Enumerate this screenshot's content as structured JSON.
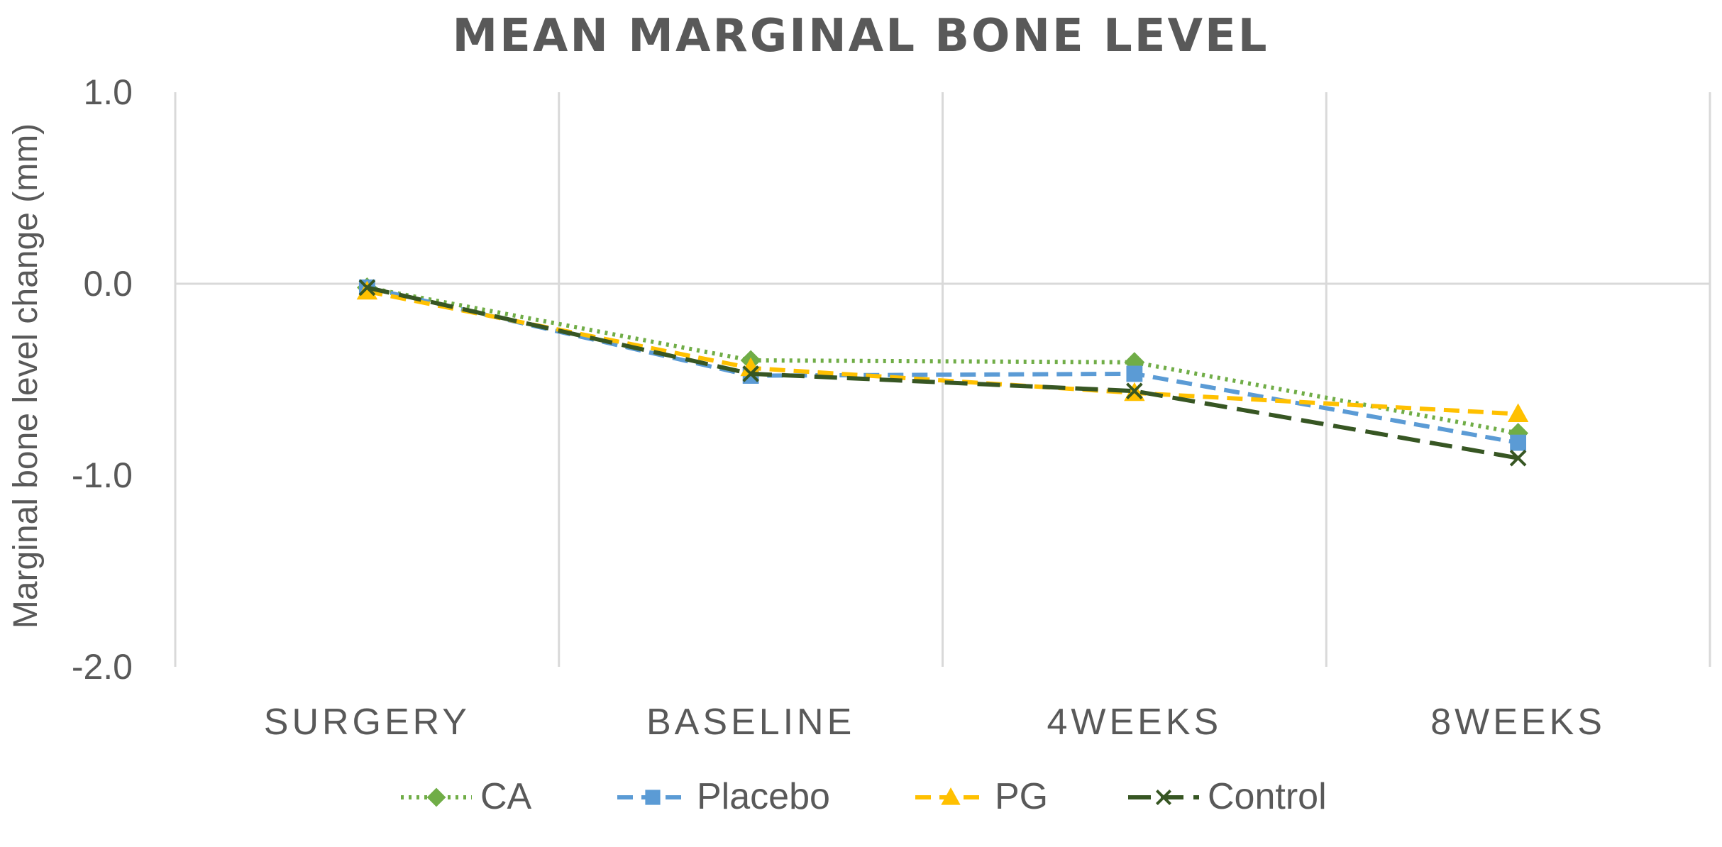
{
  "chart_data": {
    "type": "line",
    "title": "MEAN MARGINAL BONE LEVEL",
    "xlabel": "",
    "ylabel": "Marginal bone level change (mm)",
    "categories": [
      "SURGERY",
      "BASELINE",
      "4WEEKS",
      "8WEEKS"
    ],
    "ylim": [
      -2.0,
      1.0
    ],
    "yticks": [
      1.0,
      0.0,
      -1.0,
      -2.0
    ],
    "ytick_labels": [
      "1.0",
      "0.0",
      "-1.0",
      "-2.0"
    ],
    "grid": true,
    "legend_position": "bottom",
    "series": [
      {
        "name": "CA",
        "values": [
          -0.02,
          -0.4,
          -0.41,
          -0.78
        ],
        "color": "#70AD47",
        "dash": "dotted",
        "marker": "diamond"
      },
      {
        "name": "Placebo",
        "values": [
          -0.02,
          -0.48,
          -0.47,
          -0.83
        ],
        "color": "#5B9BD5",
        "dash": "dashed",
        "marker": "square"
      },
      {
        "name": "PG",
        "values": [
          -0.04,
          -0.44,
          -0.57,
          -0.68
        ],
        "color": "#FFC000",
        "dash": "dashed",
        "marker": "triangle"
      },
      {
        "name": "Control",
        "values": [
          -0.02,
          -0.47,
          -0.56,
          -0.91
        ],
        "color": "#375623",
        "dash": "longdash",
        "marker": "x"
      }
    ]
  }
}
